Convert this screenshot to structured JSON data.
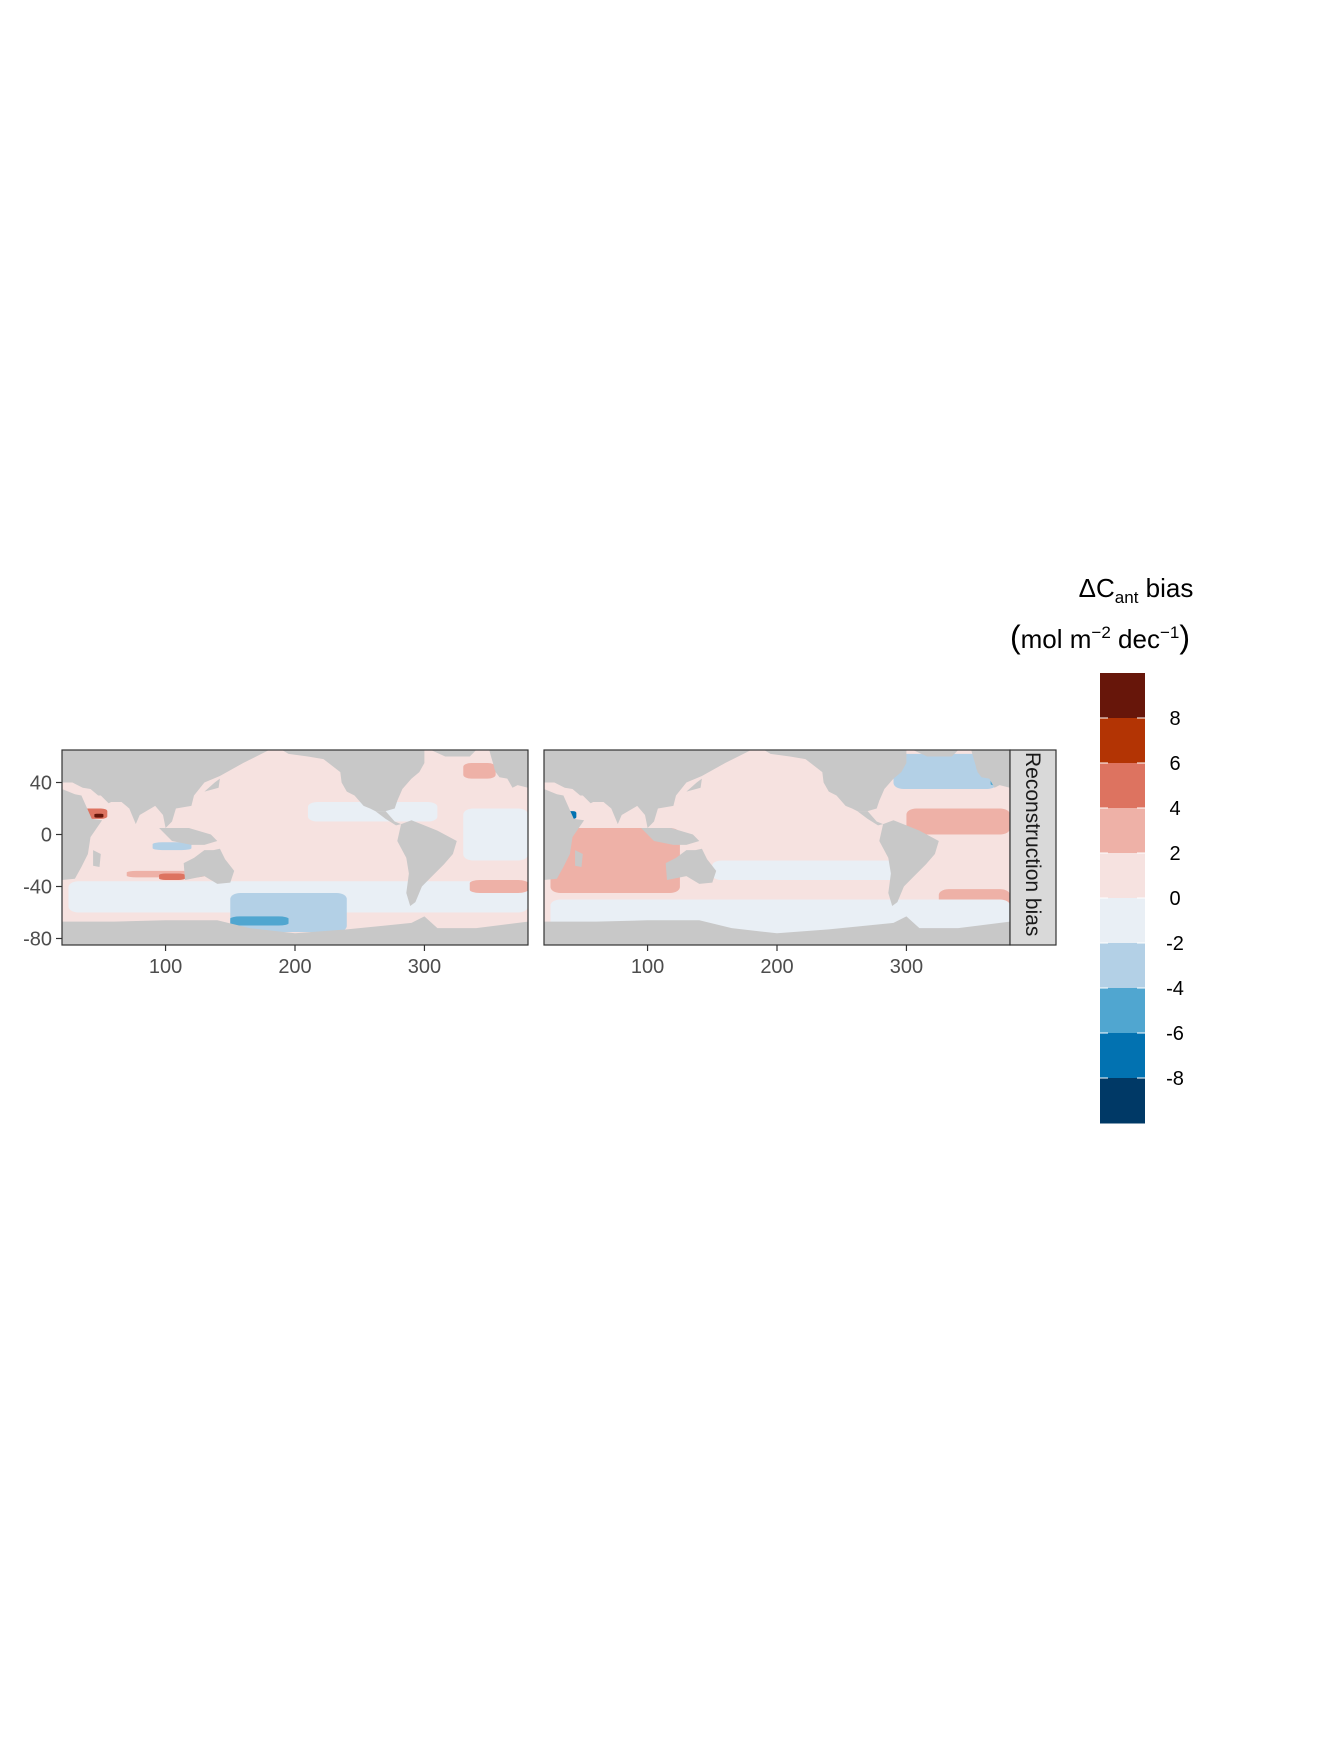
{
  "chart_data": {
    "type": "heatmap",
    "panels": [
      {
        "facet": "left",
        "xlim": [
          20,
          380
        ],
        "ylim": [
          -85,
          65
        ],
        "xticks": [
          100,
          200,
          300
        ],
        "yticks": [
          40,
          0,
          -40,
          -80
        ],
        "base_bin": "0–2",
        "features": [
          {
            "bin": "-2–0",
            "lon": [
              25,
              380
            ],
            "lat": [
              -60,
              -36
            ],
            "desc": "southern ocean band"
          },
          {
            "bin": "-2–0",
            "lon": [
              210,
              310
            ],
            "lat": [
              10,
              25
            ],
            "desc": "north pacific band"
          },
          {
            "bin": "-2–0",
            "lon": [
              330,
              380
            ],
            "lat": [
              -20,
              20
            ],
            "desc": "tropical atlantic"
          },
          {
            "bin": "2–4",
            "lon": [
              70,
              130
            ],
            "lat": [
              -33,
              -28
            ],
            "desc": "indian ocean band"
          },
          {
            "bin": "4–6",
            "lon": [
              95,
              115
            ],
            "lat": [
              -35,
              -30
            ]
          },
          {
            "bin": "2–4",
            "lon": [
              335,
              380
            ],
            "lat": [
              -45,
              -35
            ],
            "desc": "south atlantic"
          },
          {
            "bin": "2–4",
            "lon": [
              330,
              355
            ],
            "lat": [
              43,
              55
            ],
            "desc": "north atlantic"
          },
          {
            "bin": "4–6",
            "lon": [
              35,
              55
            ],
            "lat": [
              12,
              20
            ]
          },
          {
            "bin": "8+",
            "lon": [
              45,
              52
            ],
            "lat": [
              13,
              16
            ]
          },
          {
            "bin": "-4–-2",
            "lon": [
              150,
              240
            ],
            "lat": [
              -75,
              -45
            ],
            "desc": "pacific sector"
          },
          {
            "bin": "-6–-4",
            "lon": [
              150,
              195
            ],
            "lat": [
              -70,
              -63
            ]
          },
          {
            "bin": "-4–-2",
            "lon": [
              90,
              120
            ],
            "lat": [
              -12,
              -6
            ]
          }
        ]
      },
      {
        "facet": "right",
        "xlim": [
          20,
          380
        ],
        "ylim": [
          -85,
          65
        ],
        "xticks": [
          100,
          200,
          300
        ],
        "base_bin": "0–2",
        "features": [
          {
            "bin": "2–4",
            "lon": [
              25,
              125
            ],
            "lat": [
              -45,
              5
            ],
            "desc": "indian ocean"
          },
          {
            "bin": "2–4",
            "lon": [
              145,
              210
            ],
            "lat": [
              -75,
              -65
            ],
            "desc": "southern band"
          },
          {
            "bin": "2–4",
            "lon": [
              300,
              380
            ],
            "lat": [
              0,
              20
            ],
            "desc": "tropical atlantic"
          },
          {
            "bin": "2–4",
            "lon": [
              325,
              380
            ],
            "lat": [
              -60,
              -42
            ]
          },
          {
            "bin": "-2–0",
            "lon": [
              25,
              380
            ],
            "lat": [
              -80,
              -50
            ],
            "desc": "southern ocean"
          },
          {
            "bin": "-2–0",
            "lon": [
              150,
              300
            ],
            "lat": [
              -35,
              -20
            ]
          },
          {
            "bin": "-4–-2",
            "lon": [
              290,
              370
            ],
            "lat": [
              35,
              62
            ],
            "desc": "north atlantic"
          },
          {
            "bin": "-6–-4",
            "lon": [
              365,
              372
            ],
            "lat": [
              38,
              42
            ]
          },
          {
            "bin": "-8–-6",
            "lon": [
              35,
              45
            ],
            "lat": [
              12,
              18
            ]
          }
        ]
      }
    ],
    "strip_label": "Reconstruction bias",
    "legend": {
      "title_main": "ΔC",
      "title_sub": "ant",
      "title_rest": " bias",
      "unit_open": "(",
      "unit_mol": "mol m",
      "unit_exp1": "−2",
      "unit_dec": " dec",
      "unit_exp2": "−1",
      "unit_close": ")",
      "labels": [
        "8",
        "6",
        "4",
        "2",
        "0",
        "-2",
        "-4",
        "-6",
        "-8"
      ],
      "bins": [
        "8+",
        "6–8",
        "4–6",
        "2–4",
        "0–2",
        "-2–0",
        "-4–-2",
        "-6–-4",
        "-8–-6",
        "-8-"
      ],
      "colors": [
        "#67160a",
        "#b33404",
        "#dd7360",
        "#eeb1a7",
        "#f6e2e0",
        "#e9eff5",
        "#b3d0e6",
        "#50a6d0",
        "#0272b1",
        "#003966"
      ]
    },
    "colors": {
      "land": "#c8c8c8",
      "panel_border": "#333333",
      "strip_fill": "#d9d9d9"
    }
  }
}
